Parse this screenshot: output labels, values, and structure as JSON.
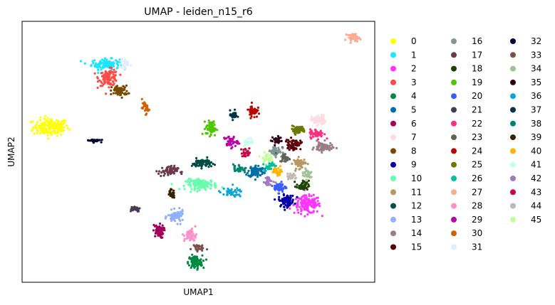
{
  "chart_data": {
    "type": "scatter",
    "title": "UMAP - leiden_n15_r6",
    "xlabel": "UMAP1",
    "ylabel": "UMAP2",
    "xticks": "none",
    "yticks": "none",
    "grid": false,
    "legend_placement": "right-outside",
    "legend_columns": 3,
    "series": [
      {
        "name": "0",
        "color": "#ffff00",
        "clusters": [
          [
            -10.2,
            4.1,
            1.0,
            0.6,
            160
          ]
        ]
      },
      {
        "name": "1",
        "color": "#1ce6ff",
        "clusters": [
          [
            -6.8,
            8.8,
            0.8,
            0.35,
            110
          ]
        ]
      },
      {
        "name": "2",
        "color": "#ff34ff",
        "clusters": [
          [
            5.8,
            -1.7,
            0.75,
            0.6,
            150
          ]
        ]
      },
      {
        "name": "3",
        "color": "#ff4a46",
        "clusters": [
          [
            -6.6,
            7.8,
            0.55,
            0.55,
            110
          ]
        ]
      },
      {
        "name": "4",
        "color": "#008941",
        "clusters": [
          [
            -1.2,
            -6.0,
            0.4,
            0.45,
            110
          ]
        ]
      },
      {
        "name": "5",
        "color": "#006fa6",
        "clusters": [
          [
            2.6,
            0.8,
            0.45,
            0.4,
            90
          ]
        ]
      },
      {
        "name": "6",
        "color": "#a30059",
        "clusters": [
          [
            -3.5,
            -3.7,
            0.3,
            0.45,
            70
          ]
        ]
      },
      {
        "name": "7",
        "color": "#ffdbe5",
        "clusters": [
          [
            6.5,
            4.6,
            0.4,
            0.35,
            60
          ]
        ]
      },
      {
        "name": "8",
        "color": "#7a4900",
        "clusters": [
          [
            -5.9,
            6.8,
            0.45,
            0.35,
            70
          ]
        ]
      },
      {
        "name": "9",
        "color": "#0000a6",
        "clusters": [
          [
            4.5,
            -1.4,
            0.45,
            0.4,
            80
          ]
        ]
      },
      {
        "name": "10",
        "color": "#63ffac",
        "clusters": [
          [
            -0.8,
            -0.2,
            0.9,
            0.35,
            110
          ]
        ]
      },
      {
        "name": "11",
        "color": "#b79762",
        "clusters": [
          [
            5.3,
            1.4,
            0.35,
            0.35,
            50
          ]
        ]
      },
      {
        "name": "12",
        "color": "#004d43",
        "clusters": [
          [
            -0.8,
            1.4,
            0.55,
            0.3,
            70
          ]
        ]
      },
      {
        "name": "13",
        "color": "#8fb0ff",
        "clusters": [
          [
            -2.4,
            -2.6,
            0.45,
            0.4,
            70
          ]
        ]
      },
      {
        "name": "14",
        "color": "#997d87",
        "clusters": [
          [
            6.8,
            2.6,
            0.5,
            0.35,
            70
          ]
        ]
      },
      {
        "name": "15",
        "color": "#5a0007",
        "clusters": [
          [
            4.9,
            2.8,
            0.45,
            0.35,
            60
          ]
        ]
      },
      {
        "name": "16",
        "color": "#809693",
        "clusters": [
          [
            3.8,
            2.3,
            0.4,
            0.35,
            50
          ]
        ]
      },
      {
        "name": "17",
        "color": "#6a3a4c",
        "clusters": [
          [
            -2.9,
            0.8,
            0.55,
            0.35,
            60
          ]
        ]
      },
      {
        "name": "18",
        "color": "#1b4400",
        "clusters": [
          [
            5.5,
            -0.3,
            0.35,
            0.35,
            40
          ]
        ]
      },
      {
        "name": "19",
        "color": "#4fc601",
        "clusters": [
          [
            -0.2,
            4.0,
            0.3,
            0.5,
            60
          ]
        ]
      },
      {
        "name": "20",
        "color": "#3b5dff",
        "clusters": [
          [
            4.1,
            -0.4,
            0.35,
            0.35,
            50
          ]
        ]
      },
      {
        "name": "21",
        "color": "#4a3b53",
        "clusters": [
          [
            -5.0,
            -2.0,
            0.35,
            0.2,
            40
          ]
        ]
      },
      {
        "name": "22",
        "color": "#ff2f80",
        "clusters": [
          [
            6.4,
            3.6,
            0.4,
            0.3,
            60
          ]
        ]
      },
      {
        "name": "23",
        "color": "#61615a",
        "clusters": [
          [
            4.4,
            1.8,
            0.3,
            0.3,
            30
          ]
        ]
      },
      {
        "name": "24",
        "color": "#ba0900",
        "clusters": [
          [
            2.4,
            5.3,
            0.25,
            0.45,
            50
          ]
        ]
      },
      {
        "name": "25",
        "color": "#6b7900",
        "clusters": [
          [
            5.2,
            3.9,
            0.45,
            0.25,
            60
          ]
        ]
      },
      {
        "name": "26",
        "color": "#00c2a0",
        "clusters": [
          [
            3.4,
            1.2,
            0.3,
            0.3,
            30
          ]
        ]
      },
      {
        "name": "27",
        "color": "#ffaa92",
        "clusters": [
          [
            8.7,
            10.8,
            0.35,
            0.25,
            40
          ]
        ]
      },
      {
        "name": "28",
        "color": "#ff90c9",
        "clusters": [
          [
            -1.5,
            -4.0,
            0.35,
            0.45,
            50
          ]
        ]
      },
      {
        "name": "29",
        "color": "#b903aa",
        "clusters": [
          [
            1.0,
            3.0,
            0.4,
            0.4,
            40
          ]
        ]
      },
      {
        "name": "30",
        "color": "#d16100",
        "clusters": [
          [
            -4.3,
            5.5,
            0.2,
            0.35,
            30
          ]
        ]
      },
      {
        "name": "31",
        "color": "#ddefff",
        "clusters": [
          [
            -5.6,
            8.8,
            0.25,
            0.4,
            30
          ]
        ]
      },
      {
        "name": "32",
        "color": "#000035",
        "clusters": [
          [
            -7.5,
            3.1,
            0.35,
            0.1,
            30
          ]
        ]
      },
      {
        "name": "33",
        "color": "#7b4f4b",
        "clusters": [
          [
            -1.1,
            -4.9,
            0.35,
            0.25,
            30
          ]
        ]
      },
      {
        "name": "34",
        "color": "#a1c299",
        "clusters": [
          [
            5.8,
            0.6,
            0.35,
            0.35,
            30
          ]
        ]
      },
      {
        "name": "35",
        "color": "#300018",
        "clusters": [
          [
            3.9,
            3.1,
            0.3,
            0.3,
            30
          ]
        ]
      },
      {
        "name": "36",
        "color": "#0aa6d8",
        "clusters": [
          [
            1.0,
            -0.8,
            0.7,
            0.3,
            40
          ]
        ]
      },
      {
        "name": "37",
        "color": "#013349",
        "clusters": [
          [
            1.2,
            5.0,
            0.2,
            0.3,
            30
          ]
        ]
      },
      {
        "name": "38",
        "color": "#00846f",
        "clusters": [
          [
            1.5,
            1.0,
            0.3,
            0.3,
            30
          ]
        ]
      },
      {
        "name": "39",
        "color": "#372101",
        "clusters": [
          [
            -2.7,
            -0.9,
            0.2,
            0.3,
            25
          ]
        ]
      },
      {
        "name": "40",
        "color": "#ffb500",
        "clusters": [
          [
            4.0,
            0.8,
            0.3,
            0.3,
            30
          ]
        ]
      },
      {
        "name": "41",
        "color": "#c2ffed",
        "clusters": [
          [
            2.1,
            3.0,
            0.3,
            0.3,
            25
          ]
        ]
      },
      {
        "name": "42",
        "color": "#a079bf",
        "clusters": [
          [
            3.4,
            0.0,
            0.3,
            0.3,
            25
          ]
        ]
      },
      {
        "name": "43",
        "color": "#cc0744",
        "clusters": [
          [
            2.0,
            2.2,
            0.3,
            0.3,
            25
          ]
        ]
      },
      {
        "name": "44",
        "color": "#c0b9b2",
        "clusters": [
          [
            4.8,
            0.4,
            0.3,
            0.3,
            25
          ]
        ]
      },
      {
        "name": "45",
        "color": "#c2ff99",
        "clusters": [
          [
            3.2,
            1.8,
            0.3,
            0.3,
            25
          ]
        ]
      }
    ]
  }
}
